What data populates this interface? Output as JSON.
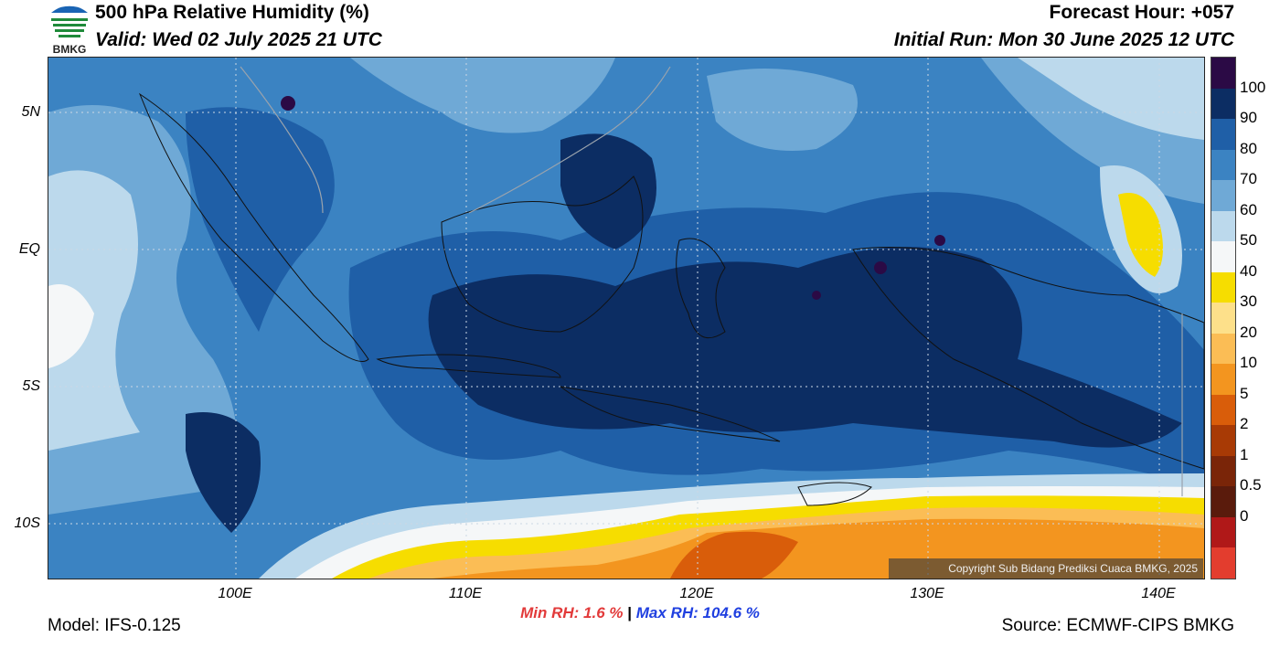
{
  "header": {
    "title": "500 hPa Relative Humidity (%)",
    "valid": "Valid: Wed 02 July 2025 21 UTC",
    "forecast_hour": "Forecast Hour: +057",
    "initial_run": "Initial Run: Mon 30 June 2025 12 UTC"
  },
  "logo": {
    "text": "BMKG",
    "icon": "bmkg-logo-icon"
  },
  "axes": {
    "lat_labels": [
      "5N",
      "EQ",
      "5S",
      "10S"
    ],
    "lon_labels": [
      "100E",
      "110E",
      "120E",
      "130E",
      "140E"
    ]
  },
  "colorbar": {
    "labels": [
      "100",
      "90",
      "80",
      "70",
      "60",
      "50",
      "40",
      "30",
      "20",
      "10",
      "5",
      "2",
      "1",
      "0.5",
      "0"
    ],
    "colors": [
      "#2b0a45",
      "#0c2d63",
      "#1f5fa7",
      "#3b83c2",
      "#6fa9d6",
      "#bcd9ec",
      "#f5f7f8",
      "#f6dd00",
      "#fde08a",
      "#fbbd55",
      "#f3951f",
      "#d95d0a",
      "#a83a05",
      "#7a2508",
      "#5a1b0c",
      "#b01818",
      "#e33d2e"
    ]
  },
  "copyright": "Copyright Sub Bidang Prediksi Cuaca BMKG, 2025",
  "stats": {
    "min_label": "Min RH:",
    "min_value": "1.6 %",
    "separator": "|",
    "max_label": "Max RH:",
    "max_value": "104.6 %"
  },
  "footer": {
    "model": "Model: IFS-0.125",
    "source": "Source: ECMWF-CIPS BMKG"
  }
}
